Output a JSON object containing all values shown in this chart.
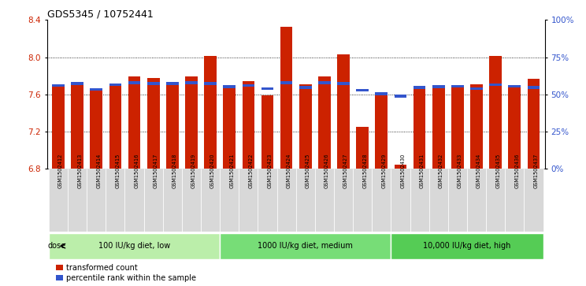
{
  "title": "GDS5345 / 10752441",
  "samples": [
    "GSM1502412",
    "GSM1502413",
    "GSM1502414",
    "GSM1502415",
    "GSM1502416",
    "GSM1502417",
    "GSM1502418",
    "GSM1502419",
    "GSM1502420",
    "GSM1502421",
    "GSM1502422",
    "GSM1502423",
    "GSM1502424",
    "GSM1502425",
    "GSM1502426",
    "GSM1502427",
    "GSM1502428",
    "GSM1502429",
    "GSM1502430",
    "GSM1502431",
    "GSM1502432",
    "GSM1502433",
    "GSM1502434",
    "GSM1502435",
    "GSM1502436",
    "GSM1502437"
  ],
  "bar_values": [
    7.7,
    7.72,
    7.65,
    7.72,
    7.79,
    7.78,
    7.73,
    7.79,
    8.01,
    7.68,
    7.74,
    7.59,
    8.33,
    7.71,
    7.79,
    8.03,
    7.25,
    7.62,
    6.84,
    7.67,
    7.67,
    7.68,
    7.71,
    8.01,
    7.69,
    7.77
  ],
  "percentile_values": [
    7.682,
    7.7,
    7.638,
    7.688,
    7.712,
    7.7,
    7.7,
    7.71,
    7.7,
    7.668,
    7.68,
    7.648,
    7.71,
    7.66,
    7.71,
    7.7,
    7.63,
    7.59,
    7.568,
    7.66,
    7.668,
    7.672,
    7.648,
    7.688,
    7.672,
    7.66
  ],
  "y_min": 6.8,
  "y_max": 8.4,
  "bar_color": "#cc2200",
  "percentile_color": "#3355cc",
  "groups": [
    {
      "label": "100 IU/kg diet, low",
      "start": 0,
      "end": 9,
      "color": "#bbeeaa"
    },
    {
      "label": "1000 IU/kg diet, medium",
      "start": 9,
      "end": 18,
      "color": "#77dd77"
    },
    {
      "label": "10,000 IU/kg diet, high",
      "start": 18,
      "end": 26,
      "color": "#55cc55"
    }
  ],
  "yticks_left": [
    6.8,
    7.2,
    7.6,
    8.0,
    8.4
  ],
  "yticks_right": [
    0,
    25,
    50,
    75,
    100
  ],
  "grid_values": [
    7.2,
    7.6,
    8.0
  ],
  "background_color": "#ffffff",
  "xtick_bg": "#d8d8d8"
}
